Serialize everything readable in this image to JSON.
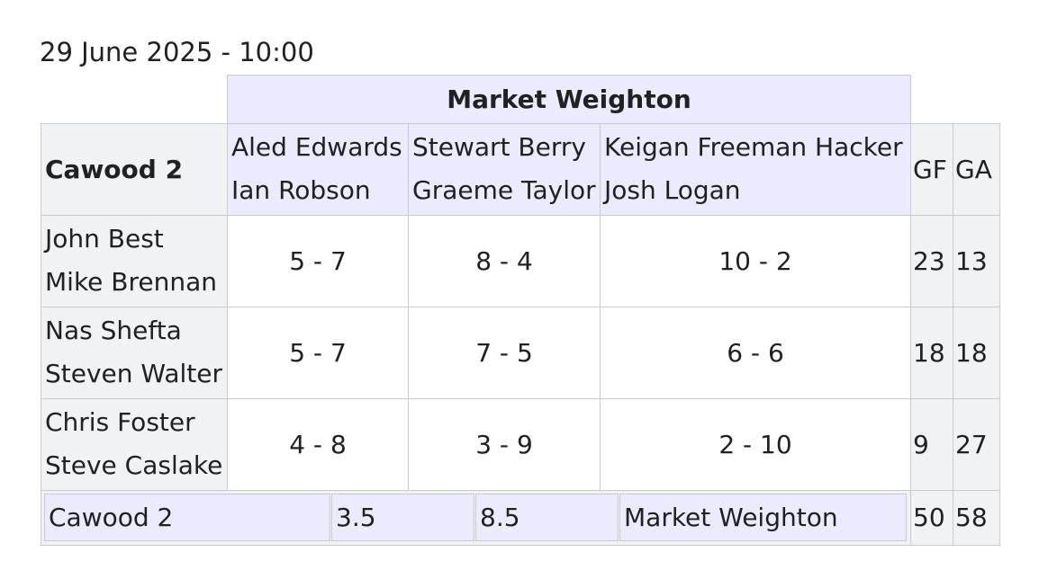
{
  "date_line": "29 June 2025 - 10:00",
  "away_team": "Market Weighton",
  "home_team": "Cawood 2",
  "columns": {
    "gf": "GF",
    "ga": "GA"
  },
  "away_pairs": [
    {
      "p1": "Aled Edwards",
      "p2": "Ian Robson"
    },
    {
      "p1": "Stewart Berry",
      "p2": "Graeme Taylor"
    },
    {
      "p1": "Keigan Freeman Hacker",
      "p2": "Josh Logan"
    }
  ],
  "rows": [
    {
      "p1": "John Best",
      "p2": "Mike Brennan",
      "scores": [
        "5 - 7",
        "8 - 4",
        "10 - 2"
      ],
      "gf": "23",
      "ga": "13"
    },
    {
      "p1": "Nas Shefta",
      "p2": "Steven Walter",
      "scores": [
        "5 - 7",
        "7 - 5",
        "6 - 6"
      ],
      "gf": "18",
      "ga": "18"
    },
    {
      "p1": "Chris Foster",
      "p2": "Steve Caslake",
      "scores": [
        "4 - 8",
        "3 - 9",
        "2 - 10"
      ],
      "gf": "9",
      "ga": "27"
    }
  ],
  "footer": {
    "home_team": "Cawood 2",
    "home_points": "3.5",
    "away_points": "8.5",
    "away_team": "Market Weighton",
    "gf": "50",
    "ga": "58"
  },
  "colors": {
    "header_bg": "#eaecfd",
    "side_bg": "#f1f2f3",
    "border": "#c8ccd1"
  }
}
